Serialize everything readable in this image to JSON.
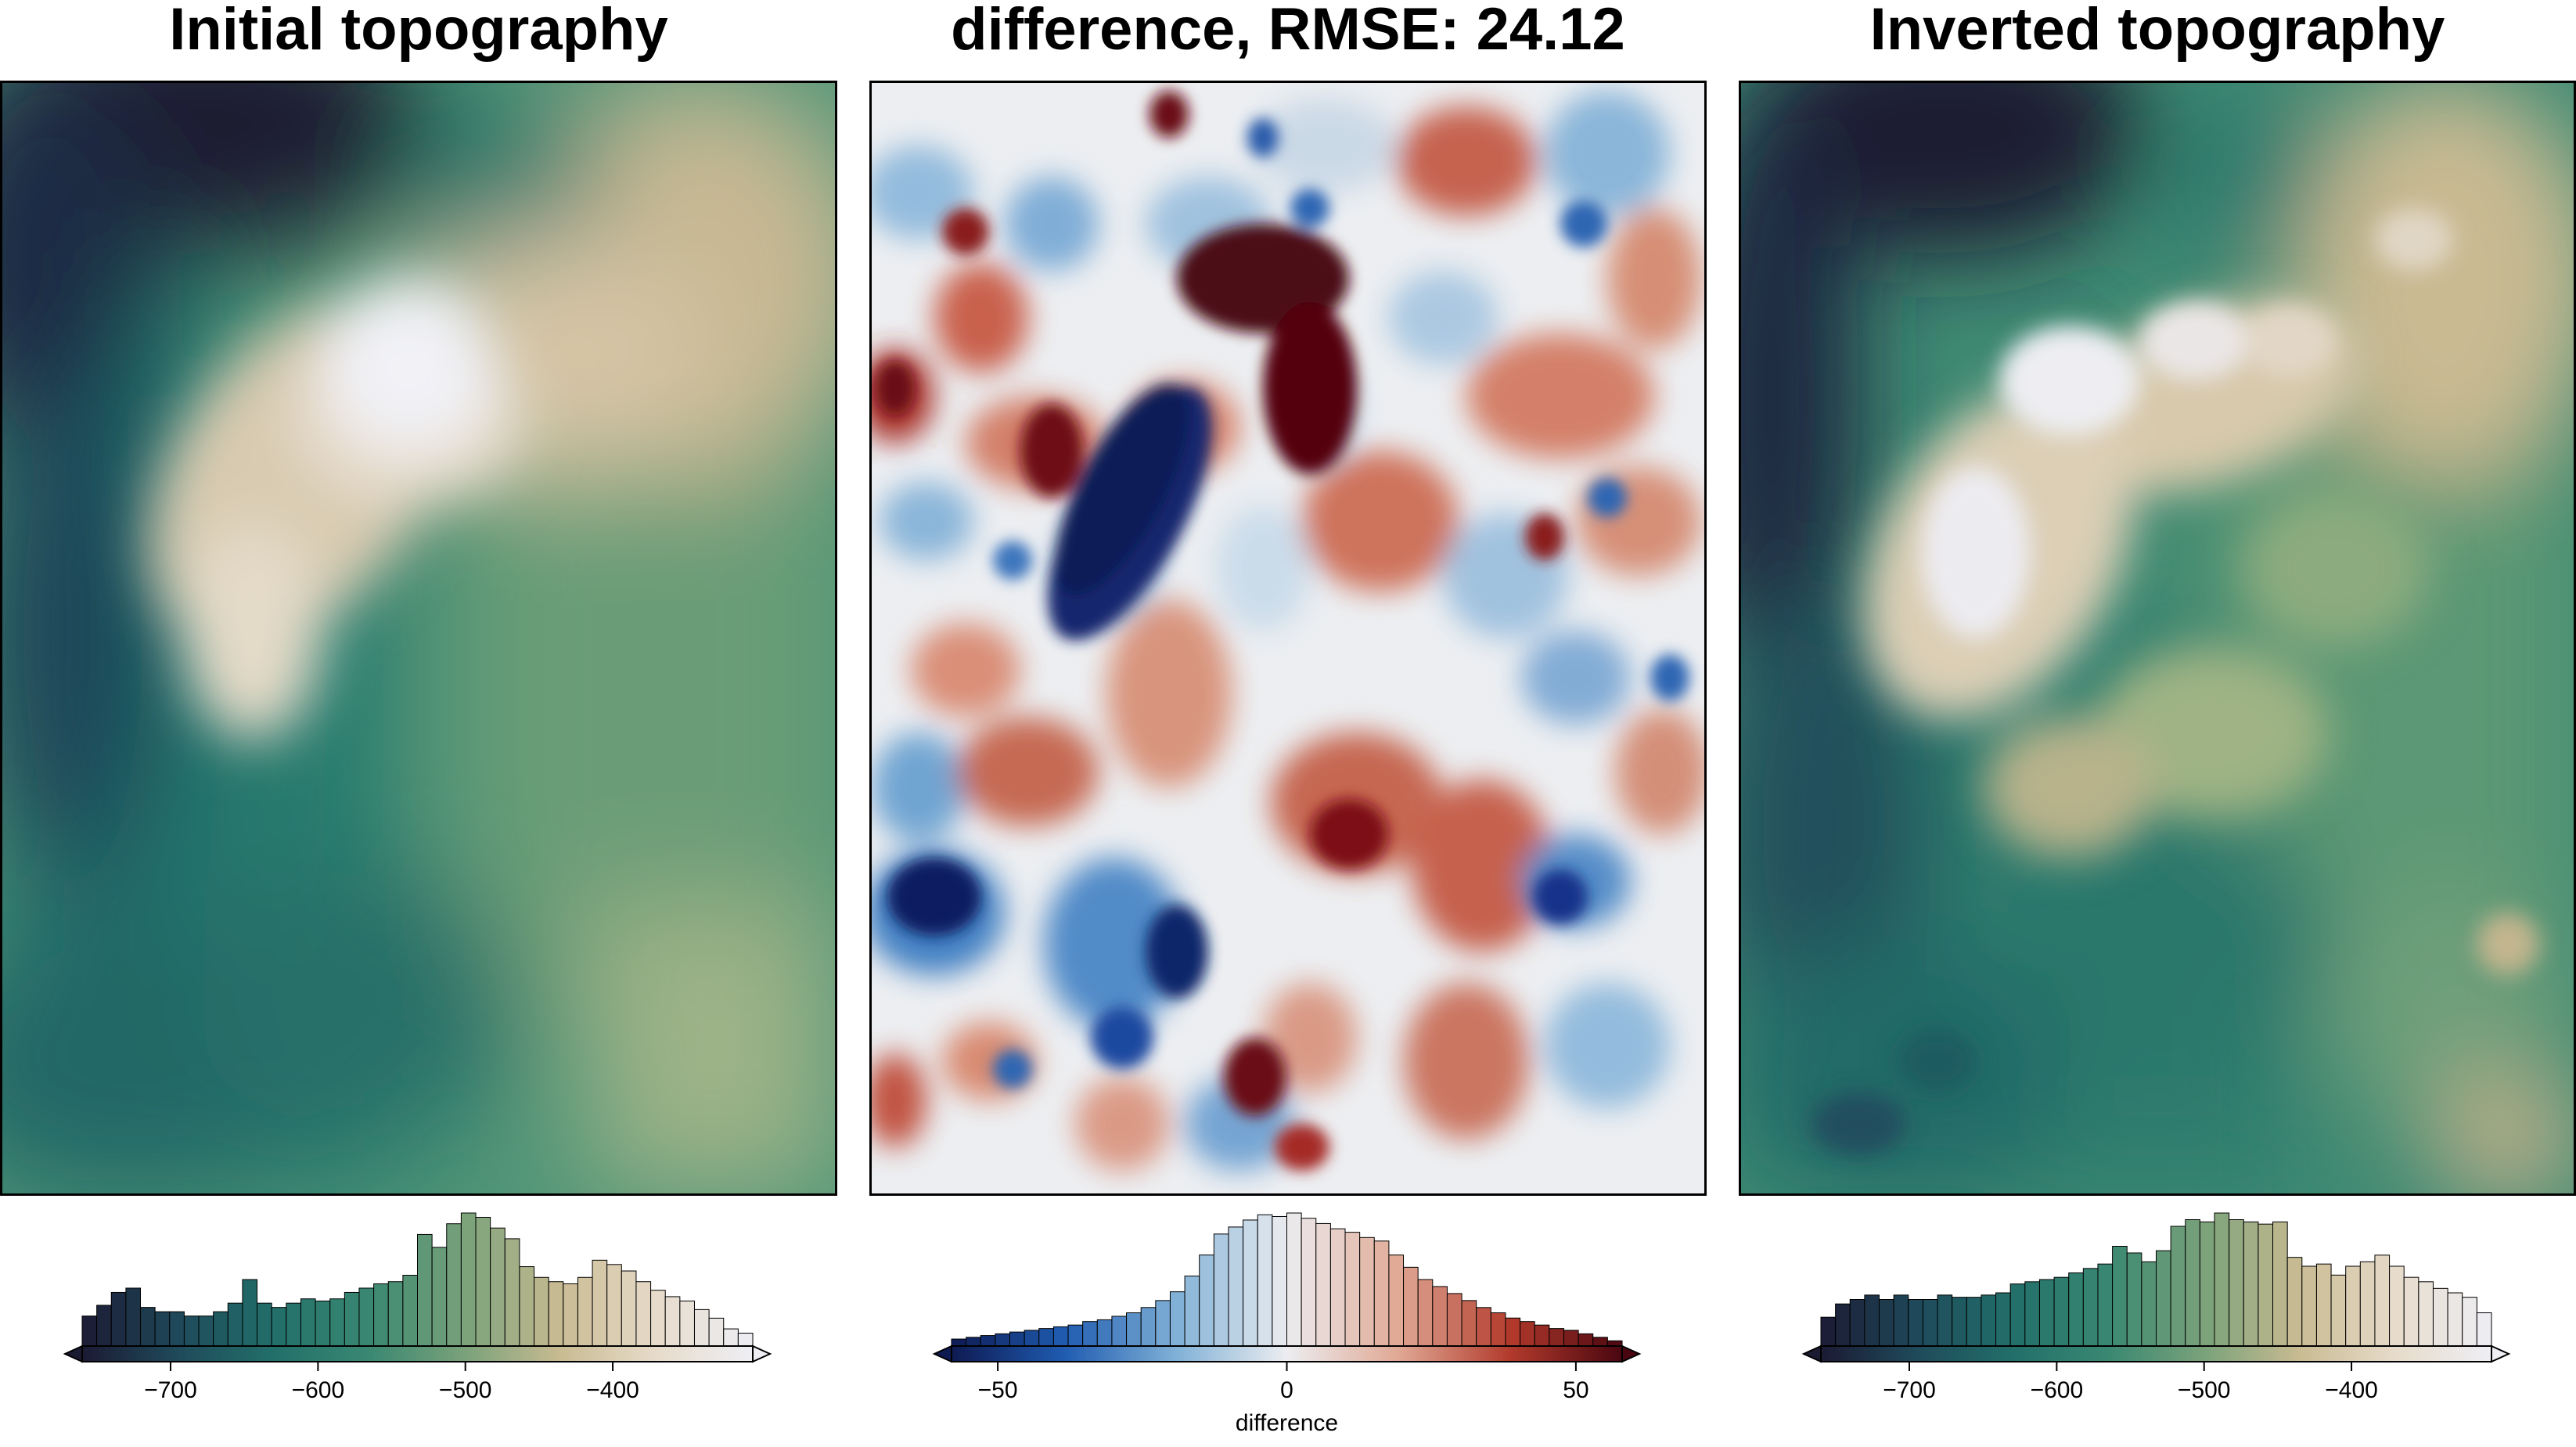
{
  "chart_data": [
    {
      "type": "heatmap",
      "title": "Initial topography",
      "colormap": "topography (navy - teal - sage - cream - white)",
      "colorbar": {
        "range": [
          -760,
          -305
        ],
        "ticks": [
          -700,
          -600,
          -500,
          -400
        ],
        "tick_labels": [
          "−700",
          "−600",
          "−500",
          "−400"
        ],
        "label": "",
        "extend": "both",
        "histogram_bin_width": 10,
        "histogram_counts": [
          14,
          19,
          25,
          27,
          18,
          16,
          16,
          14,
          14,
          16,
          20,
          31,
          20,
          18,
          20,
          22,
          21,
          22,
          25,
          27,
          29,
          30,
          33,
          52,
          46,
          57,
          62,
          60,
          55,
          50,
          37,
          32,
          30,
          29,
          32,
          40,
          38,
          35,
          30,
          26,
          23,
          21,
          17,
          13,
          8,
          6
        ]
      },
      "colors": [
        "#1b1a33",
        "#1f4a5a",
        "#226f6a",
        "#3a8872",
        "#7aa27a",
        "#c9bb92",
        "#e7dccb",
        "#eeeef4"
      ]
    },
    {
      "type": "heatmap",
      "title": "difference, RMSE: 24.12",
      "colormap": "diverging (navy - blue - white - red - dark red)",
      "colorbar": {
        "range": [
          -58,
          58
        ],
        "ticks": [
          -50,
          0,
          50
        ],
        "tick_labels": [
          "−50",
          "0",
          "50"
        ],
        "label": "difference",
        "extend": "both",
        "histogram_bin_width": 2.5,
        "histogram_counts": [
          4,
          5,
          6,
          7,
          8,
          9,
          10,
          11,
          12,
          14,
          15,
          17,
          19,
          22,
          26,
          31,
          40,
          52,
          64,
          68,
          72,
          75,
          74,
          76,
          73,
          70,
          67,
          65,
          62,
          60,
          52,
          45,
          38,
          34,
          30,
          26,
          22,
          19,
          16,
          14,
          12,
          10,
          9,
          7,
          5,
          3
        ]
      },
      "colors": [
        "#0e1a52",
        "#1f5bb0",
        "#7fb0d6",
        "#ecedf0",
        "#e0a894",
        "#b23a2c",
        "#4a0610"
      ]
    },
    {
      "type": "heatmap",
      "title": "Inverted topography",
      "colormap": "topography (navy - teal - sage - cream - white)",
      "colorbar": {
        "range": [
          -760,
          -305
        ],
        "ticks": [
          -700,
          -600,
          -500,
          -400
        ],
        "tick_labels": [
          "−700",
          "−600",
          "−500",
          "−400"
        ],
        "label": "",
        "extend": "both",
        "histogram_bin_width": 10,
        "histogram_counts": [
          13,
          19,
          21,
          23,
          21,
          23,
          21,
          21,
          23,
          22,
          22,
          23,
          24,
          28,
          29,
          30,
          31,
          33,
          35,
          37,
          45,
          42,
          38,
          43,
          54,
          57,
          56,
          60,
          57,
          56,
          55,
          56,
          40,
          36,
          37,
          32,
          36,
          38,
          41,
          36,
          31,
          29,
          26,
          24,
          22,
          15
        ]
      },
      "colors": [
        "#1b1a33",
        "#1f4a5a",
        "#226f6a",
        "#3a8872",
        "#7aa27a",
        "#c9bb92",
        "#e7dccb",
        "#eeeef4"
      ]
    }
  ]
}
